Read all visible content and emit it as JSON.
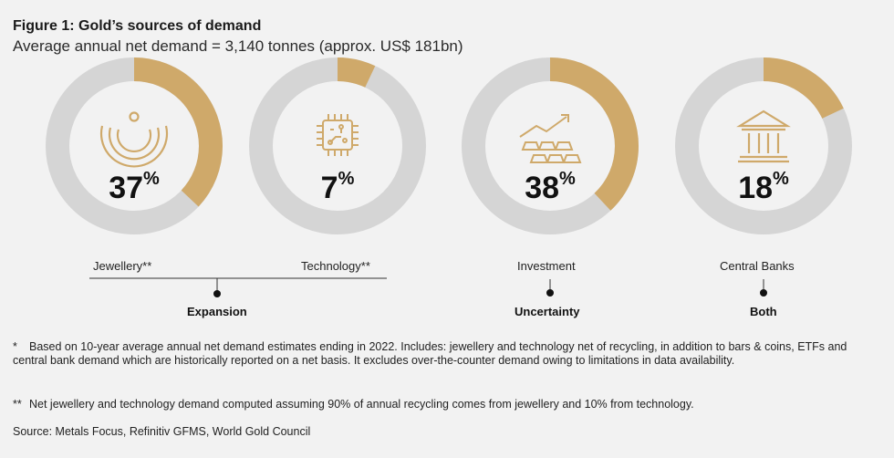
{
  "figure": {
    "title": "Figure 1: Gold’s sources of demand",
    "subtitle": "Average annual net demand = 3,140 tonnes (approx. US$ 181bn)"
  },
  "colors": {
    "gold": "#cfa96a",
    "ring": "#d5d5d5",
    "dark": "#1a1a1a"
  },
  "chart_data": {
    "type": "pie",
    "categories": [
      "Jewellery**",
      "Technology**",
      "Investment",
      "Central Banks"
    ],
    "values": [
      37,
      7,
      38,
      18
    ],
    "unit": "%",
    "value_labels": [
      "37",
      "7",
      "38",
      "18"
    ],
    "icons": [
      "necklace-icon",
      "chip-icon",
      "investment-icon",
      "bank-icon"
    ],
    "drivers": [
      {
        "label": "Expansion",
        "categories": [
          "Jewellery**",
          "Technology**"
        ]
      },
      {
        "label": "Uncertainty",
        "categories": [
          "Investment"
        ]
      },
      {
        "label": "Both",
        "categories": [
          "Central Banks"
        ]
      }
    ]
  },
  "notes": {
    "star_mark": "*",
    "star": "Based on 10-year average annual net demand estimates ending in 2022. Includes: jewellery and technology net of recycling, in addition to bars & coins, ETFs and central bank demand which are historically reported on a net basis. It excludes over-the-counter demand owing to limitations in data availability.",
    "double_star_mark": "**",
    "double_star": "Net jewellery and technology demand computed assuming 90% of annual recycling comes from jewellery and 10% from technology.",
    "source": "Source: Metals Focus, Refinitiv GFMS, World Gold Council"
  }
}
